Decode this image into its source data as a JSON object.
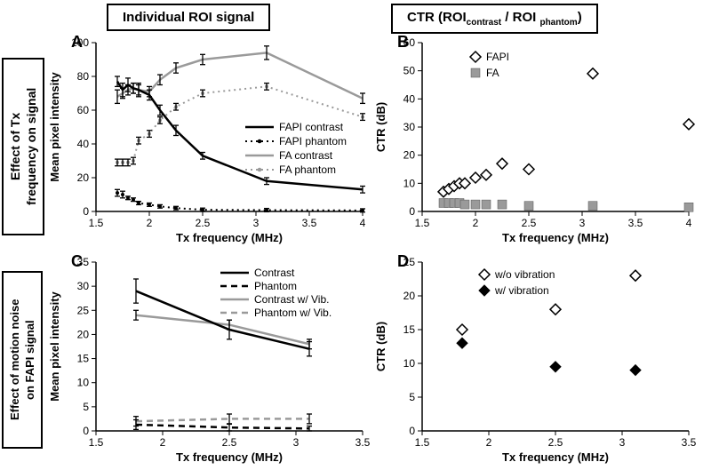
{
  "layout": {
    "titles": {
      "left": "Individual ROI signal",
      "right": "CTR (ROI",
      "right_sub1": "contrast",
      "right_mid": " / ROI ",
      "right_sub2": "phantom",
      "right_end": ")",
      "side_top_l1": "Effect of Tx",
      "side_top_l2": "frequency on signal",
      "side_bot_l1": "Effect of motion noise",
      "side_bot_l2": "on FAPI signal"
    },
    "xlabel": "Tx frequency (MHz)",
    "yA": "Mean pixel intensity",
    "yB": "CTR (dB)",
    "yC": "Mean pixel intensity",
    "yD": "CTR (dB)"
  },
  "axes": {
    "A": {
      "xlim": [
        1.5,
        4.0
      ],
      "xticks": [
        1.5,
        2,
        2.5,
        3,
        3.5,
        4
      ],
      "ylim": [
        0,
        100
      ],
      "yticks": [
        0,
        20,
        40,
        60,
        80,
        100
      ]
    },
    "B": {
      "xlim": [
        1.5,
        4.0
      ],
      "xticks": [
        1.5,
        2,
        2.5,
        3,
        3.5,
        4
      ],
      "ylim": [
        0,
        60
      ],
      "yticks": [
        0,
        10,
        20,
        30,
        40,
        50,
        60
      ]
    },
    "C": {
      "xlim": [
        1.5,
        3.5
      ],
      "xticks": [
        1.5,
        2,
        2.5,
        3,
        3.5
      ],
      "ylim": [
        0,
        35
      ],
      "yticks": [
        0,
        5,
        10,
        15,
        20,
        25,
        30,
        35
      ]
    },
    "D": {
      "xlim": [
        1.5,
        3.5
      ],
      "xticks": [
        1.5,
        2,
        2.5,
        3,
        3.5
      ],
      "ylim": [
        0,
        25
      ],
      "yticks": [
        0,
        5,
        10,
        15,
        20,
        25
      ]
    }
  },
  "seriesA": {
    "fapi_contrast": {
      "color": "#000000",
      "style": "solid",
      "x": [
        1.7,
        1.75,
        1.8,
        1.85,
        1.9,
        2.0,
        2.1,
        2.25,
        2.5,
        3.1,
        4.0
      ],
      "y": [
        77,
        72,
        75,
        73,
        72,
        69,
        60,
        48,
        33,
        18,
        13
      ],
      "e": [
        3,
        4,
        4,
        3,
        4,
        3,
        3,
        3,
        2,
        2,
        2
      ]
    },
    "fapi_phantom": {
      "color": "#000000",
      "style": "dot",
      "x": [
        1.7,
        1.75,
        1.8,
        1.85,
        1.9,
        2.0,
        2.1,
        2.25,
        2.5,
        3.1,
        4.0
      ],
      "y": [
        11,
        10,
        8,
        7,
        5,
        4,
        3,
        2,
        1,
        0.8,
        0.6
      ],
      "e": [
        2,
        2,
        1,
        1,
        1,
        1,
        1,
        1,
        1,
        1,
        1
      ]
    },
    "fa_contrast": {
      "color": "#9a9a9a",
      "style": "solid",
      "x": [
        1.7,
        1.75,
        1.8,
        1.85,
        1.9,
        2.0,
        2.1,
        2.25,
        2.5,
        3.1,
        4.0
      ],
      "y": [
        68,
        70,
        72,
        73,
        72,
        71,
        78,
        85,
        90,
        94,
        67
      ],
      "e": [
        4,
        3,
        3,
        3,
        3,
        3,
        3,
        3,
        3,
        4,
        3
      ]
    },
    "fa_phantom": {
      "color": "#9a9a9a",
      "style": "dot",
      "x": [
        1.7,
        1.75,
        1.8,
        1.85,
        1.9,
        2.0,
        2.1,
        2.25,
        2.5,
        3.1,
        4.0
      ],
      "y": [
        29,
        29,
        29,
        30,
        42,
        46,
        54,
        62,
        70,
        74,
        56
      ],
      "e": [
        2,
        2,
        2,
        2,
        2,
        2,
        2,
        2,
        2,
        2,
        2
      ]
    },
    "legend": [
      "FAPI contrast",
      "FAPI phantom",
      "FA contrast",
      "FA phantom"
    ]
  },
  "seriesB": {
    "fapi": {
      "marker": "open-diamond",
      "x": [
        1.7,
        1.75,
        1.8,
        1.85,
        1.9,
        2.0,
        2.1,
        2.25,
        2.5,
        3.1,
        4.0
      ],
      "y": [
        7,
        8,
        9,
        10,
        10,
        12,
        13,
        17,
        15,
        49,
        31
      ]
    },
    "fa": {
      "marker": "gray-square",
      "x": [
        1.7,
        1.75,
        1.8,
        1.85,
        1.9,
        2.0,
        2.1,
        2.25,
        2.5,
        3.1,
        4.0
      ],
      "y": [
        3,
        3,
        3,
        3,
        2.5,
        2.5,
        2.5,
        2.5,
        2,
        2,
        1.5
      ]
    },
    "legend": [
      "FAPI",
      "FA"
    ]
  },
  "seriesC": {
    "contrast": {
      "color": "#000000",
      "style": "solid",
      "x": [
        1.8,
        2.5,
        3.1
      ],
      "y": [
        29,
        21,
        17
      ],
      "e": [
        2.5,
        2,
        1.5
      ]
    },
    "phantom": {
      "color": "#000000",
      "style": "dash",
      "x": [
        1.8,
        2.5,
        3.1
      ],
      "y": [
        1.3,
        0.7,
        0.5
      ],
      "e": [
        1,
        0.7,
        0.5
      ]
    },
    "contrast_vib": {
      "color": "#9a9a9a",
      "style": "solid",
      "x": [
        1.8,
        2.5,
        3.1
      ],
      "y": [
        24,
        22,
        18
      ],
      "e": [
        1,
        1,
        1
      ]
    },
    "phantom_vib": {
      "color": "#9a9a9a",
      "style": "dash",
      "x": [
        1.8,
        2.5,
        3.1
      ],
      "y": [
        2,
        2.5,
        2.5
      ],
      "e": [
        1,
        1,
        1
      ]
    },
    "legend": [
      "Contrast",
      "Phantom",
      "Contrast w/ Vib.",
      "Phantom w/ Vib."
    ]
  },
  "seriesD": {
    "wo": {
      "marker": "open-diamond",
      "x": [
        1.8,
        2.5,
        3.1
      ],
      "y": [
        15,
        18,
        23
      ]
    },
    "w": {
      "marker": "filled-diamond",
      "x": [
        1.8,
        2.5,
        3.1
      ],
      "y": [
        13,
        9.5,
        9
      ]
    },
    "legend": [
      "w/o vibration",
      "w/ vibration"
    ]
  },
  "colors": {
    "black": "#000000",
    "gray": "#9a9a9a",
    "bg": "#ffffff"
  }
}
